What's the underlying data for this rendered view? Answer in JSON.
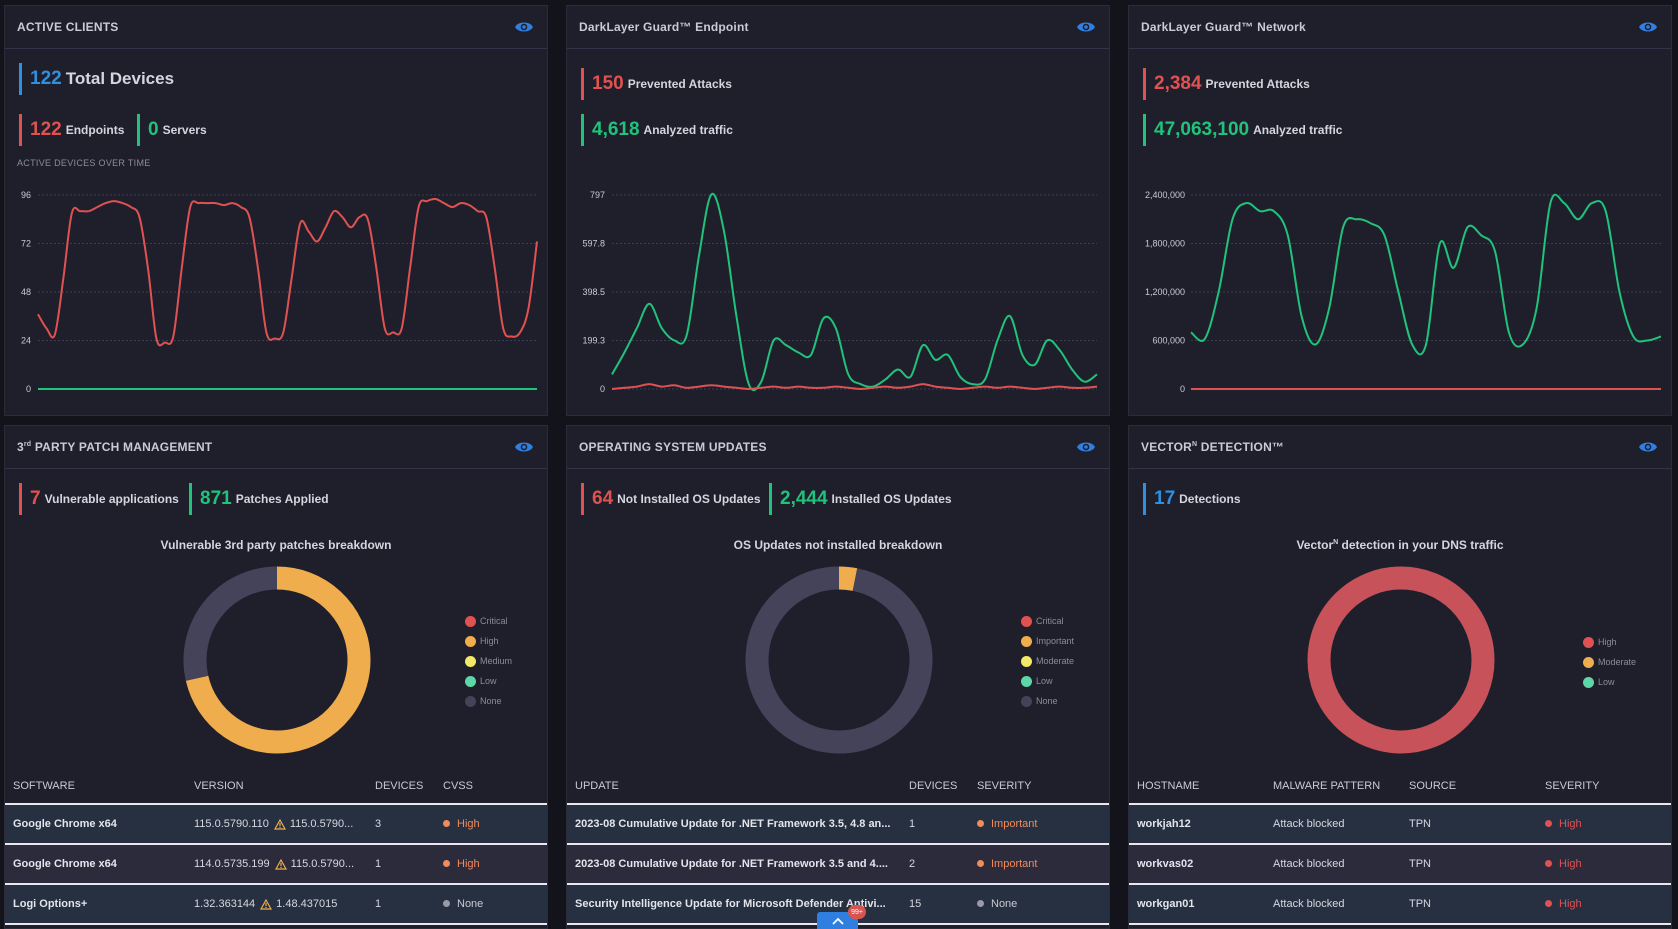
{
  "colors": {
    "red": "#e05252",
    "green": "#21c27a",
    "blue": "#2f8fe0",
    "orange": "#f0ad4e",
    "gray": "#45435a"
  },
  "icons": {
    "eye": "eye-icon",
    "warning": "warning-icon",
    "chevron": "chevron-up-icon"
  },
  "active_clients": {
    "title": "ACTIVE CLIENTS",
    "total_num": "122",
    "total_label": "Total Devices",
    "endpoints_num": "122",
    "endpoints_label": "Endpoints",
    "servers_num": "0",
    "servers_label": "Servers",
    "subhead": "ACTIVE DEVICES OVER TIME"
  },
  "endpoint": {
    "title": "DarkLayer Guard™ Endpoint",
    "prevented_num": "150",
    "prevented_label": "Prevented Attacks",
    "analyzed_num": "4,618",
    "analyzed_label": "Analyzed traffic"
  },
  "network": {
    "title": "DarkLayer Guard™ Network",
    "prevented_num": "2,384",
    "prevented_label": "Prevented Attacks",
    "analyzed_num": "47,063,100",
    "analyzed_label": "Analyzed traffic"
  },
  "patch": {
    "title": "3rd PARTY PATCH MANAGEMENT",
    "title_main": "PARTY PATCH MANAGEMENT",
    "title_pre": "3",
    "title_sup": "rd",
    "vuln_num": "7",
    "vuln_label": "Vulnerable applications",
    "applied_num": "871",
    "applied_label": "Patches Applied",
    "donut_title": "Vulnerable 3rd party patches breakdown",
    "legend": [
      "Critical",
      "High",
      "Medium",
      "Low",
      "None"
    ],
    "headers": [
      "SOFTWARE",
      "VERSION",
      "DEVICES",
      "CVSS"
    ],
    "rows": [
      {
        "software": "Google Chrome x64",
        "version": "115.0.5790.110",
        "version_new": "115.0.5790...",
        "devices": "3",
        "cvss": "High"
      },
      {
        "software": "Google Chrome x64",
        "version": "114.0.5735.199",
        "version_new": "115.0.5790...",
        "devices": "1",
        "cvss": "High"
      },
      {
        "software": "Logi Options+",
        "version": "1.32.363144",
        "version_new": "1.48.437015",
        "devices": "1",
        "cvss": "None"
      }
    ]
  },
  "os": {
    "title": "OPERATING SYSTEM UPDATES",
    "not_installed_num": "64",
    "not_installed_label": "Not Installed OS Updates",
    "installed_num": "2,444",
    "installed_label": "Installed OS Updates",
    "donut_title": "OS Updates not installed breakdown",
    "legend": [
      "Critical",
      "Important",
      "Moderate",
      "Low",
      "None"
    ],
    "headers": [
      "UPDATE",
      "DEVICES",
      "SEVERITY"
    ],
    "rows": [
      {
        "update": "2023-08 Cumulative Update for .NET Framework 3.5, 4.8 an...",
        "devices": "1",
        "severity": "Important"
      },
      {
        "update": "2023-08 Cumulative Update for .NET Framework 3.5 and 4....",
        "devices": "2",
        "severity": "Important"
      },
      {
        "update": "Security Intelligence Update for Microsoft Defender Antivi...",
        "devices": "15",
        "severity": "None"
      }
    ],
    "badge": "99+"
  },
  "vector": {
    "title": "VECTORN DETECTION™",
    "title_main": "VECTOR",
    "title_sup": "N",
    "title_post": " DETECTION™",
    "detections_num": "17",
    "detections_label": "Detections",
    "donut_title": "VectorN detection in your DNS traffic",
    "donut_title_a": "Vector",
    "donut_title_sup": "N",
    "donut_title_b": " detection in your DNS traffic",
    "legend": [
      "High",
      "Moderate",
      "Low"
    ],
    "headers": [
      "HOSTNAME",
      "MALWARE PATTERN",
      "SOURCE",
      "SEVERITY"
    ],
    "rows": [
      {
        "hostname": "workjah12",
        "pattern": "Attack blocked",
        "source": "TPN",
        "severity": "High"
      },
      {
        "hostname": "workvas02",
        "pattern": "Attack blocked",
        "source": "TPN",
        "severity": "High"
      },
      {
        "hostname": "workgan01",
        "pattern": "Attack blocked",
        "source": "TPN",
        "severity": "High"
      }
    ]
  },
  "chart_data": [
    {
      "type": "line",
      "title": "ACTIVE DEVICES OVER TIME",
      "ylim": [
        0,
        96
      ],
      "yticks": [
        "96",
        "72",
        "48",
        "24",
        "0"
      ],
      "grid": true,
      "series": [
        {
          "color": "#e05252",
          "values": [
            37,
            30,
            27,
            55,
            87,
            88,
            88,
            90,
            92,
            93,
            92,
            90,
            85,
            60,
            25,
            23,
            26,
            60,
            90,
            92,
            92,
            92,
            91,
            92,
            90,
            85,
            60,
            28,
            25,
            28,
            55,
            82,
            78,
            73,
            80,
            88,
            85,
            80,
            85,
            84,
            60,
            30,
            28,
            30,
            60,
            90,
            93,
            94,
            92,
            90,
            92,
            91,
            88,
            85,
            60,
            30,
            26,
            28,
            40,
            73
          ]
        },
        {
          "color": "#21c27a",
          "values": [
            0,
            0,
            0,
            0,
            0,
            0,
            0,
            0,
            0,
            0,
            0,
            0,
            0,
            0,
            0,
            0,
            0,
            0,
            0,
            0,
            0,
            0,
            0,
            0,
            0,
            0,
            0,
            0,
            0,
            0,
            0,
            0,
            0,
            0,
            0,
            0,
            0,
            0,
            0,
            0,
            0,
            0,
            0,
            0,
            0,
            0,
            0,
            0,
            0,
            0,
            0,
            0,
            0,
            0,
            0,
            0,
            0,
            0,
            0,
            0
          ]
        }
      ]
    },
    {
      "type": "line",
      "title": "DarkLayer Guard™ Endpoint",
      "ylim": [
        0,
        797
      ],
      "yticks": [
        "797",
        "597.8",
        "398.5",
        "199.3",
        "0"
      ],
      "grid": true,
      "series": [
        {
          "color": "#21c27a",
          "values": [
            60,
            150,
            250,
            350,
            250,
            200,
            220,
            550,
            800,
            650,
            300,
            20,
            30,
            200,
            180,
            150,
            140,
            290,
            250,
            60,
            20,
            10,
            40,
            80,
            50,
            180,
            120,
            140,
            50,
            20,
            40,
            200,
            300,
            140,
            100,
            200,
            160,
            80,
            30,
            60
          ]
        },
        {
          "color": "#e05252",
          "values": [
            0,
            5,
            10,
            20,
            10,
            15,
            5,
            10,
            15,
            10,
            5,
            0,
            5,
            10,
            5,
            10,
            5,
            5,
            10,
            5,
            0,
            5,
            10,
            5,
            10,
            20,
            10,
            5,
            0,
            5,
            10,
            5,
            10,
            5,
            0,
            5,
            10,
            5,
            5,
            10
          ]
        }
      ]
    },
    {
      "type": "line",
      "title": "DarkLayer Guard™ Network",
      "ylim": [
        0,
        2400000
      ],
      "yticks": [
        "2,400,000",
        "1,800,000",
        "1,200,000",
        "600,000",
        "0"
      ],
      "grid": true,
      "series": [
        {
          "color": "#21c27a",
          "values": [
            700000,
            620000,
            1200000,
            2100000,
            2300000,
            2200000,
            2200000,
            1900000,
            900000,
            550000,
            1000000,
            2000000,
            2100000,
            2050000,
            1900000,
            1200000,
            550000,
            550000,
            1800000,
            1500000,
            2000000,
            1900000,
            1700000,
            700000,
            550000,
            1000000,
            2300000,
            2300000,
            2100000,
            2300000,
            2200000,
            1200000,
            650000,
            600000,
            650000
          ]
        },
        {
          "color": "#e05252",
          "values": [
            0,
            0,
            0,
            0,
            0,
            0,
            0,
            0,
            0,
            0,
            0,
            0,
            0,
            0,
            0,
            0,
            0,
            0,
            0,
            0,
            0,
            0,
            0,
            0,
            0,
            0,
            0,
            0,
            0,
            0,
            0,
            0,
            0,
            0,
            0
          ]
        }
      ]
    },
    {
      "type": "pie",
      "title": "Vulnerable 3rd party patches breakdown",
      "categories": [
        "High",
        "None"
      ],
      "values": [
        5,
        2
      ],
      "colors": [
        "#f0ad4e",
        "#45435a"
      ]
    },
    {
      "type": "pie",
      "title": "OS Updates not installed breakdown",
      "categories": [
        "Important",
        "None"
      ],
      "values": [
        2,
        62
      ],
      "colors": [
        "#f0ad4e",
        "#45435a"
      ]
    },
    {
      "type": "pie",
      "title": "Vector detection in your DNS traffic",
      "categories": [
        "High"
      ],
      "values": [
        17
      ],
      "colors": [
        "#c8525a"
      ]
    }
  ]
}
